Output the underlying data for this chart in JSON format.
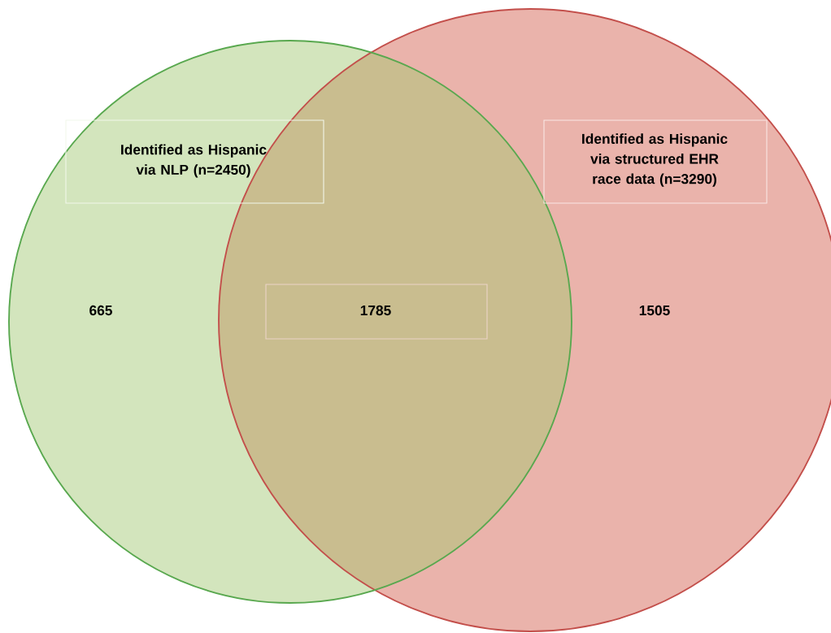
{
  "chart_data": {
    "type": "other",
    "categories": [
      null,
      null,
      null
    ],
    "values": [
      665,
      1785,
      1505
    ],
    "data_labels": true,
    "colors": [
      "#d3e5bd",
      "#c9bd8f",
      "#eab3ab"
    ],
    "annotations": [
      "Identified as Hispanic via NLP (n=2450)",
      "Identified as Hispanic via structured EHR race data (n=3290)"
    ]
  }
}
